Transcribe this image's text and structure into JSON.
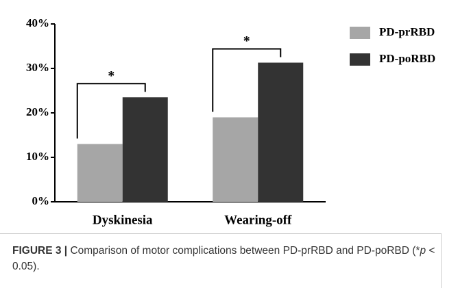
{
  "chart_data": {
    "type": "bar",
    "categories": [
      "Dyskinesia",
      "Wearing-off"
    ],
    "series": [
      {
        "name": "PD-prRBD",
        "color": "#a6a6a6",
        "values": [
          13,
          19
        ]
      },
      {
        "name": "PD-poRBD",
        "color": "#333333",
        "values": [
          23.5,
          31.3
        ]
      }
    ],
    "annotations": [
      "*",
      "*"
    ],
    "ylim": [
      0,
      40
    ],
    "yticks": [
      {
        "value": 0,
        "label": "0%"
      },
      {
        "value": 10,
        "label": "10%"
      },
      {
        "value": 20,
        "label": "20%"
      },
      {
        "value": 30,
        "label": "30%"
      },
      {
        "value": 40,
        "label": "40%"
      }
    ],
    "legend": "top-right"
  },
  "caption": {
    "label": "FIGURE 3 |",
    "text_before": "Comparison of motor complications between PD-prRBD and PD-poRBD (*",
    "italic": "p",
    "text_after": " < 0.05)."
  }
}
